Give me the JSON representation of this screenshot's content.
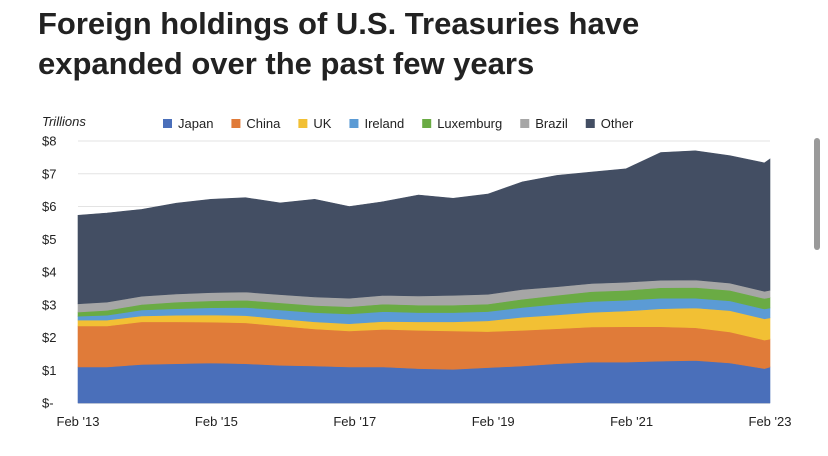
{
  "headline": {
    "line1": "Foreign holdings of U.S. Treasuries have",
    "line2": "expanded over the past few years"
  },
  "chart_data": {
    "type": "area",
    "stacked": true,
    "title": "Foreign holdings of U.S. Treasuries have expanded over the past few years",
    "ylabel": "Trillions",
    "ylim": [
      0,
      8
    ],
    "y_ticks": [
      "$-",
      "$1",
      "$2",
      "$3",
      "$4",
      "$5",
      "$6",
      "$7",
      "$8"
    ],
    "x_tick_labels": [
      "Feb '13",
      "Feb '15",
      "Feb '17",
      "Feb '19",
      "Feb '21",
      "Feb '23"
    ],
    "x_tick_positions": [
      2013.08,
      2015.08,
      2017.08,
      2019.08,
      2021.08,
      2023.08
    ],
    "xlim": [
      2013.08,
      2023.08
    ],
    "grid": true,
    "legend_position": "top",
    "x": [
      2013.08,
      2013.5,
      2014,
      2014.5,
      2015,
      2015.5,
      2016,
      2016.5,
      2017,
      2017.5,
      2018,
      2018.5,
      2019,
      2019.5,
      2020,
      2020.5,
      2021,
      2021.5,
      2022,
      2022.5,
      2023,
      2023.08
    ],
    "series": [
      {
        "name": "Japan",
        "color": "#4a6fba",
        "values": [
          1.1,
          1.1,
          1.18,
          1.2,
          1.22,
          1.2,
          1.15,
          1.13,
          1.1,
          1.1,
          1.05,
          1.03,
          1.08,
          1.13,
          1.2,
          1.25,
          1.25,
          1.28,
          1.3,
          1.22,
          1.05,
          1.1
        ]
      },
      {
        "name": "China",
        "color": "#e07b39",
        "values": [
          1.25,
          1.25,
          1.3,
          1.28,
          1.25,
          1.25,
          1.2,
          1.13,
          1.1,
          1.15,
          1.17,
          1.17,
          1.1,
          1.09,
          1.07,
          1.07,
          1.08,
          1.05,
          1.0,
          0.95,
          0.87,
          0.85
        ]
      },
      {
        "name": "UK",
        "color": "#f2c034",
        "values": [
          0.18,
          0.18,
          0.18,
          0.2,
          0.22,
          0.22,
          0.22,
          0.22,
          0.22,
          0.24,
          0.26,
          0.28,
          0.33,
          0.4,
          0.42,
          0.45,
          0.48,
          0.55,
          0.6,
          0.65,
          0.65,
          0.65
        ]
      },
      {
        "name": "Ireland",
        "color": "#5b9bd5",
        "values": [
          0.12,
          0.15,
          0.18,
          0.2,
          0.22,
          0.25,
          0.27,
          0.28,
          0.3,
          0.3,
          0.28,
          0.28,
          0.28,
          0.3,
          0.33,
          0.33,
          0.33,
          0.32,
          0.3,
          0.3,
          0.3,
          0.3
        ]
      },
      {
        "name": "Luxemburg",
        "color": "#6aab44",
        "values": [
          0.13,
          0.15,
          0.17,
          0.2,
          0.21,
          0.22,
          0.22,
          0.22,
          0.22,
          0.23,
          0.23,
          0.23,
          0.23,
          0.25,
          0.27,
          0.3,
          0.3,
          0.32,
          0.33,
          0.32,
          0.32,
          0.32
        ]
      },
      {
        "name": "Brazil",
        "color": "#a6a6a6",
        "values": [
          0.25,
          0.25,
          0.25,
          0.25,
          0.25,
          0.25,
          0.25,
          0.26,
          0.26,
          0.27,
          0.28,
          0.3,
          0.3,
          0.3,
          0.26,
          0.25,
          0.25,
          0.23,
          0.23,
          0.22,
          0.22,
          0.22
        ]
      },
      {
        "name": "Other",
        "color": "#434e63",
        "values": [
          2.7,
          2.72,
          2.65,
          2.77,
          2.85,
          2.88,
          2.8,
          2.98,
          2.8,
          2.86,
          3.08,
          2.96,
          3.06,
          3.28,
          3.4,
          3.4,
          3.46,
          3.9,
          3.94,
          3.89,
          3.92,
          4.01
        ]
      }
    ]
  }
}
